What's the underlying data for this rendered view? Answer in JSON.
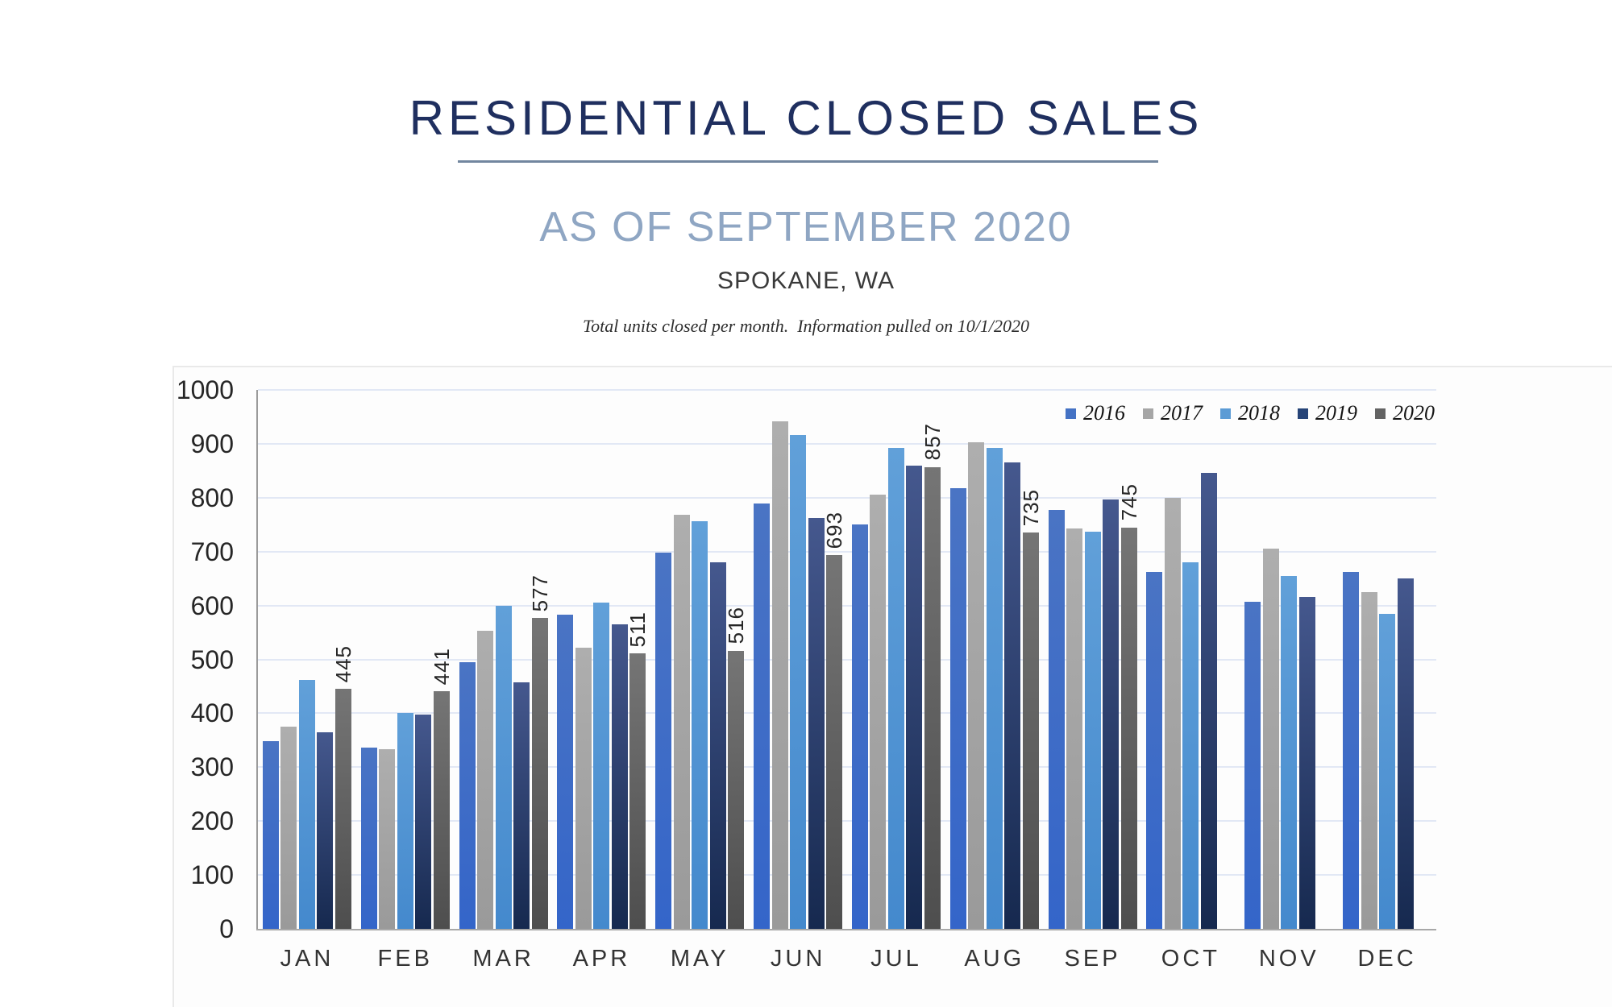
{
  "header": {
    "title": "RESIDENTIAL CLOSED SALES",
    "subtitle": "AS OF SEPTEMBER 2020",
    "location": "SPOKANE, WA",
    "note": "Total units closed per month.  Information pulled on 10/1/2020"
  },
  "colors": {
    "title": "#1f2f5f",
    "title_rule": "#72869f",
    "subtitle": "#8fa6c3",
    "gridline": "#e2e8f5",
    "axis_line": "#a8a8a8"
  },
  "chart_data": {
    "type": "bar",
    "title": "RESIDENTIAL CLOSED SALES",
    "subtitle": "AS OF SEPTEMBER 2020",
    "xlabel": "",
    "ylabel": "",
    "ylim": [
      0,
      1000
    ],
    "yticks": [
      0,
      100,
      200,
      300,
      400,
      500,
      600,
      700,
      800,
      900,
      1000
    ],
    "grid": true,
    "legend_position": "top-right-inside",
    "categories": [
      "JAN",
      "FEB",
      "MAR",
      "APR",
      "MAY",
      "JUN",
      "JUL",
      "AUG",
      "SEP",
      "OCT",
      "NOV",
      "DEC"
    ],
    "series": [
      {
        "name": "2016",
        "color": "#4472C4",
        "color_top": "#4a74c4",
        "color_bottom": "#3465c9",
        "show_labels": false,
        "values": [
          348,
          337,
          495,
          583,
          698,
          790,
          750,
          818,
          778,
          662,
          607,
          662
        ]
      },
      {
        "name": "2017",
        "color": "#A6A6A6",
        "color_top": "#aeaeae",
        "color_bottom": "#9a9a9a",
        "show_labels": false,
        "values": [
          375,
          333,
          553,
          522,
          768,
          942,
          805,
          903,
          743,
          800,
          705,
          625
        ]
      },
      {
        "name": "2018",
        "color": "#5B9BD5",
        "color_top": "#61a0d9",
        "color_bottom": "#4489cd",
        "show_labels": false,
        "values": [
          462,
          401,
          600,
          605,
          757,
          916,
          893,
          892,
          737,
          680,
          655,
          585
        ]
      },
      {
        "name": "2019",
        "color": "#264478",
        "color_top": "#45588e",
        "color_bottom": "#16294f",
        "show_labels": false,
        "values": [
          364,
          397,
          458,
          565,
          680,
          763,
          859,
          866,
          796,
          846,
          616,
          650
        ]
      },
      {
        "name": "2020",
        "color": "#636363",
        "color_top": "#757575",
        "color_bottom": "#4e4e4e",
        "show_labels": true,
        "values": [
          445,
          441,
          577,
          511,
          516,
          693,
          857,
          735,
          745,
          null,
          null,
          null
        ]
      }
    ]
  }
}
